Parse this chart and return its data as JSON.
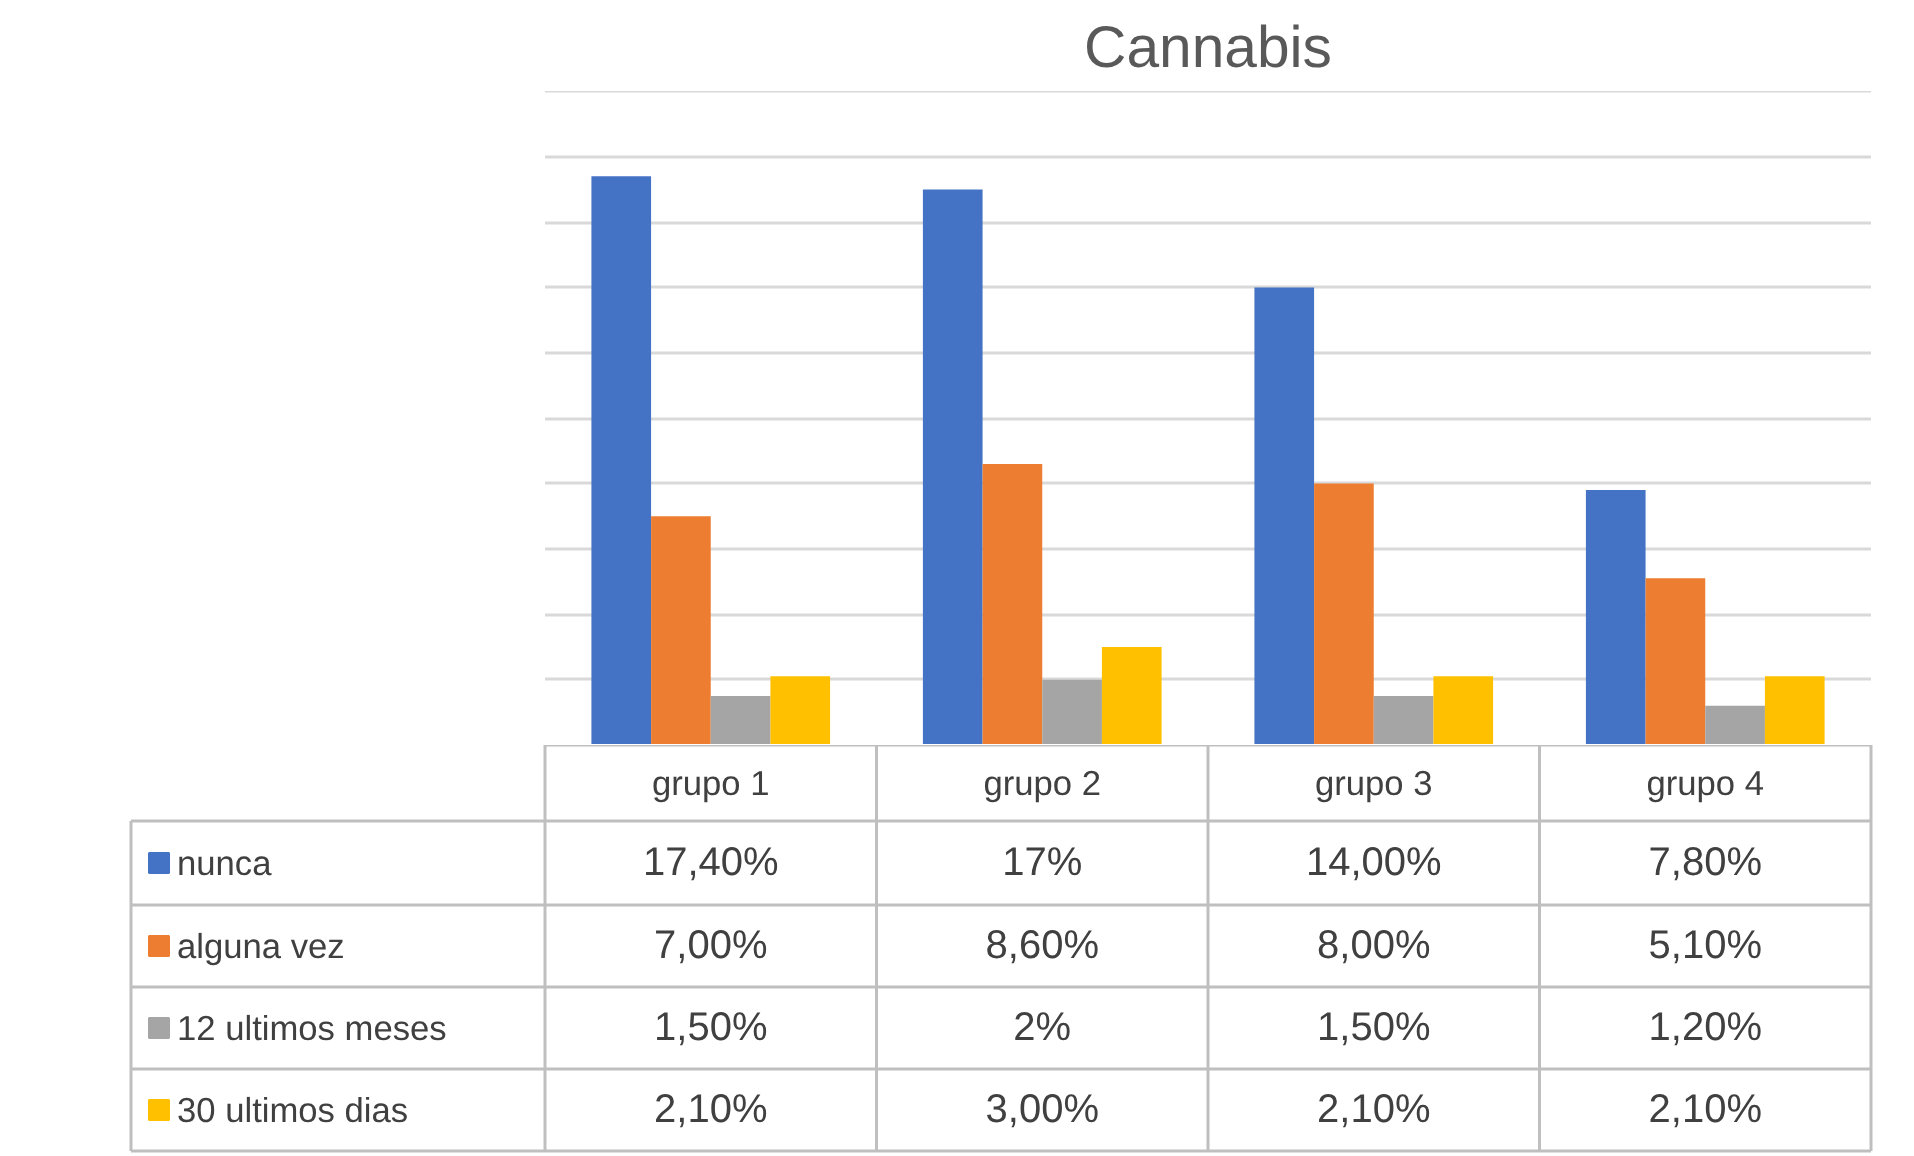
{
  "chart_data": {
    "type": "bar",
    "title": "Cannabis",
    "categories": [
      "grupo 1",
      "grupo 2",
      "grupo 3",
      "grupo 4"
    ],
    "series": [
      {
        "name": "nunca",
        "color": "#4472c4",
        "values": [
          17.4,
          17,
          14.0,
          7.8
        ],
        "value_labels": [
          "17,40%",
          "17%",
          "14,00%",
          "7,80%"
        ]
      },
      {
        "name": "alguna vez",
        "color": "#ed7d31",
        "values": [
          7.0,
          8.6,
          8.0,
          5.1
        ],
        "value_labels": [
          "7,00%",
          "8,60%",
          "8,00%",
          "5,10%"
        ]
      },
      {
        "name": "12 ultimos meses",
        "color": "#a5a5a5",
        "values": [
          1.5,
          2,
          1.5,
          1.2
        ],
        "value_labels": [
          "1,50%",
          "2%",
          "1,50%",
          "1,20%"
        ]
      },
      {
        "name": "30 ultimos dias",
        "color": "#ffc000",
        "values": [
          2.1,
          3.0,
          2.1,
          2.1
        ],
        "value_labels": [
          "2,10%",
          "3,00%",
          "2,10%",
          "2,10%"
        ]
      }
    ],
    "grid": "y",
    "legend": "bottom",
    "data_labels": true
  }
}
